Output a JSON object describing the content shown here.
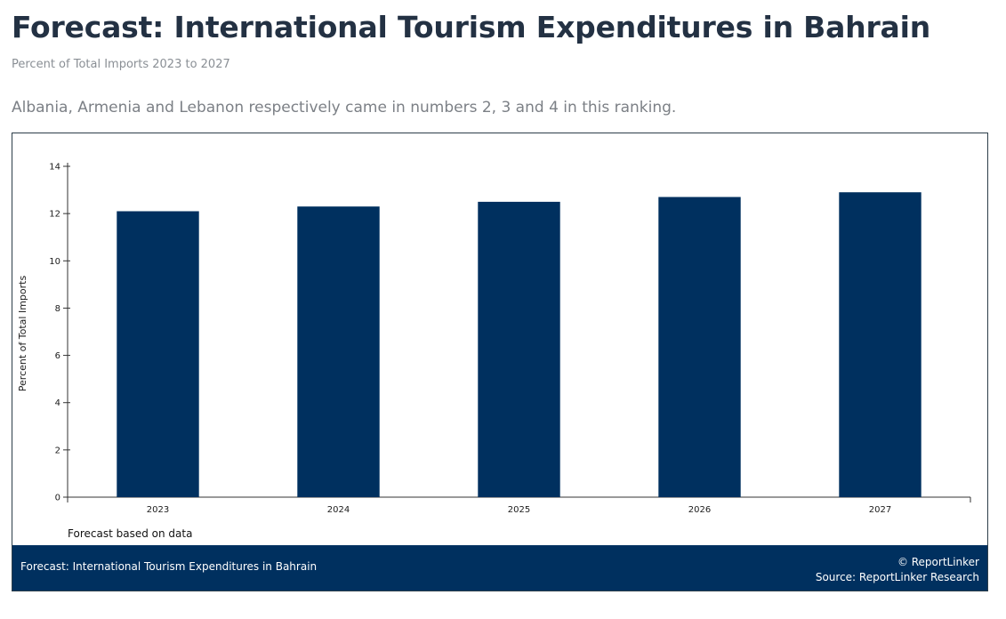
{
  "header": {
    "title": "Forecast: International Tourism Expenditures in Bahrain",
    "subtitle": "Percent of Total Imports 2023 to 2027",
    "summary": "Albania, Armenia and Lebanon respectively came in numbers 2, 3 and 4 in this ranking."
  },
  "chart_data": {
    "type": "bar",
    "categories": [
      "2023",
      "2024",
      "2025",
      "2026",
      "2027"
    ],
    "values": [
      12.1,
      12.3,
      12.5,
      12.7,
      12.9
    ],
    "ylabel": "Percent of Total Imports",
    "xlabel": "",
    "ylim": [
      0,
      14
    ],
    "yticks": [
      0,
      2,
      4,
      6,
      8,
      10,
      12,
      14
    ],
    "bar_color": "#00305f",
    "grid": false,
    "note": "Forecast based on data"
  },
  "footer": {
    "left_label": "Forecast: International Tourism Expenditures in Bahrain",
    "copyright": "© ReportLinker",
    "source": "Source:  ReportLinker Research"
  },
  "colors": {
    "title": "#233143",
    "bar": "#00305f",
    "footer_bg": "#00305f"
  }
}
